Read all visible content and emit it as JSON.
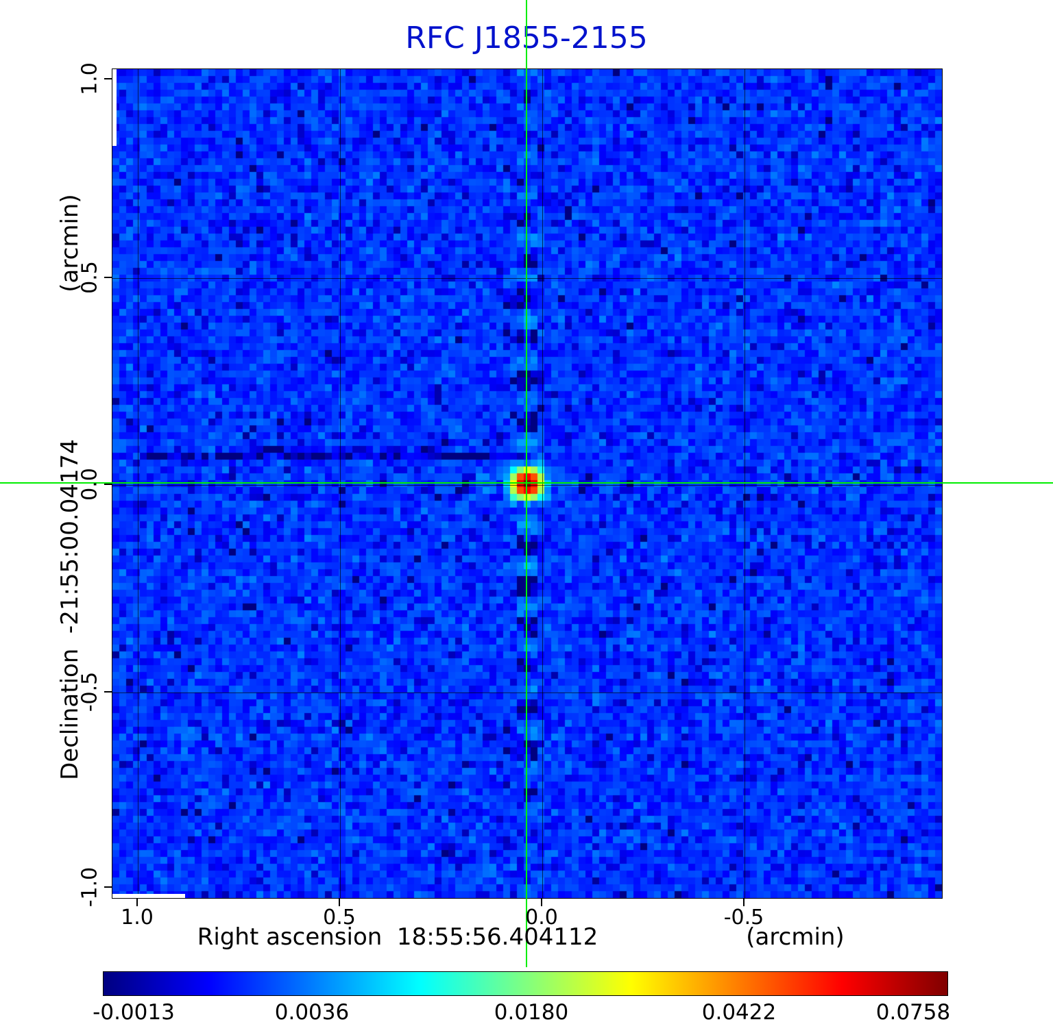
{
  "title": "RFC J1855-2155",
  "title_color": "#0011cc",
  "axes": {
    "x_title": "Right ascension  18:55:56.404112",
    "x_unit": "(arcmin)",
    "y_title": "Declination  -21:55:00.04174",
    "y_unit": "(arcmin)",
    "x_ticks": [
      "1.0",
      "0.5",
      "0.0",
      "-0.5"
    ],
    "y_ticks": [
      "1.0",
      "0.5",
      "0.0",
      "-0.5",
      "-1.0"
    ]
  },
  "colorbar": {
    "tick_labels": [
      "-0.0013",
      "0.0036",
      "0.0180",
      "0.0422",
      "0.0758"
    ],
    "colormap": "jet"
  },
  "crosshair_color": "#00ee00",
  "chart_data": {
    "type": "heatmap",
    "title": "RFC J1855-2155",
    "xlabel": "Right ascension  18:55:56.404112 (arcmin)",
    "ylabel": "Declination  -21:55:00.04174 (arcmin)",
    "x_ticks_arcmin": [
      1.0,
      0.5,
      0.0,
      -0.5
    ],
    "y_ticks_arcmin": [
      1.0,
      0.5,
      0.0,
      -0.5,
      -1.0
    ],
    "x_range_arcmin": [
      1.06,
      -0.99
    ],
    "y_range_arcmin": [
      -1.03,
      1.03
    ],
    "grid_lines_arcmin": [
      0.5,
      0.0,
      -0.5
    ],
    "colormap": "jet",
    "intensity_scale": "sqrt",
    "value_min": -0.0013,
    "value_max": 0.0758,
    "colorbar_tick_values": [
      -0.0013,
      0.0036,
      0.018,
      0.0422,
      0.0758
    ],
    "source": {
      "name": "RFC J1855-2155",
      "peak_value": 0.0758,
      "position_arcmin": [
        0.0,
        0.0
      ],
      "marker": "green crosshair"
    },
    "background": {
      "mean_level": 0.001,
      "noise_sigma": 0.001,
      "appearance": "mottled blue noise field with faint dark horizontal streak left of source and vertical/horizontal sidelobe ripples through source"
    },
    "render": {
      "cols": 121,
      "rows": 121,
      "seed": 987654,
      "base_level": 0.001,
      "noise_amp": 0.002,
      "peak_amp": 0.077,
      "peak_sigma_cells": 1.4,
      "center_col": 60,
      "center_row": 60
    }
  }
}
